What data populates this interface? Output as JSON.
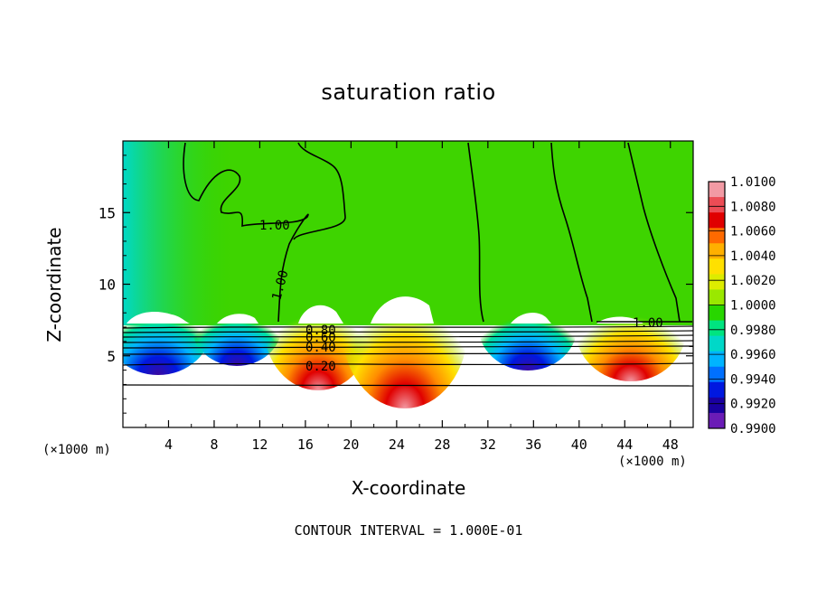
{
  "chart_data": {
    "type": "heatmap",
    "title": "saturation ratio",
    "xlabel": "X-coordinate",
    "ylabel": "Z-coordinate",
    "x_unit": "(×1000 m)",
    "x_ticks": [
      "4",
      "8",
      "12",
      "16",
      "20",
      "24",
      "28",
      "32",
      "36",
      "40",
      "44",
      "48"
    ],
    "x_tick_values": [
      4,
      8,
      12,
      16,
      20,
      24,
      28,
      32,
      36,
      40,
      44,
      48
    ],
    "xlim": [
      0,
      50
    ],
    "y_ticks": [
      "5",
      "10",
      "15"
    ],
    "y_tick_values": [
      5,
      10,
      15
    ],
    "ylim": [
      0,
      20
    ],
    "colorbar": {
      "levels": [
        "1.0100",
        "1.0080",
        "1.0060",
        "1.0040",
        "1.0020",
        "1.0000",
        "0.9980",
        "0.9960",
        "0.9940",
        "0.9920",
        "0.9900"
      ],
      "colors": [
        "#f29aa4",
        "#ec4c55",
        "#e00000",
        "#ff6a00",
        "#ffb000",
        "#ffe000",
        "#ddec00",
        "#9ae800",
        "#28d600",
        "#00e480",
        "#00d8c8",
        "#00b4ff",
        "#0070ff",
        "#0018e0",
        "#1a00a0",
        "#6a1cb6"
      ]
    },
    "contour_labels": [
      "1.00",
      "1.00",
      "1.00",
      "0.80",
      "0.60",
      "0.40",
      "0.20"
    ],
    "contour_interval": "CONTOUR INTERVAL = 1.000E-01",
    "grid": false
  }
}
